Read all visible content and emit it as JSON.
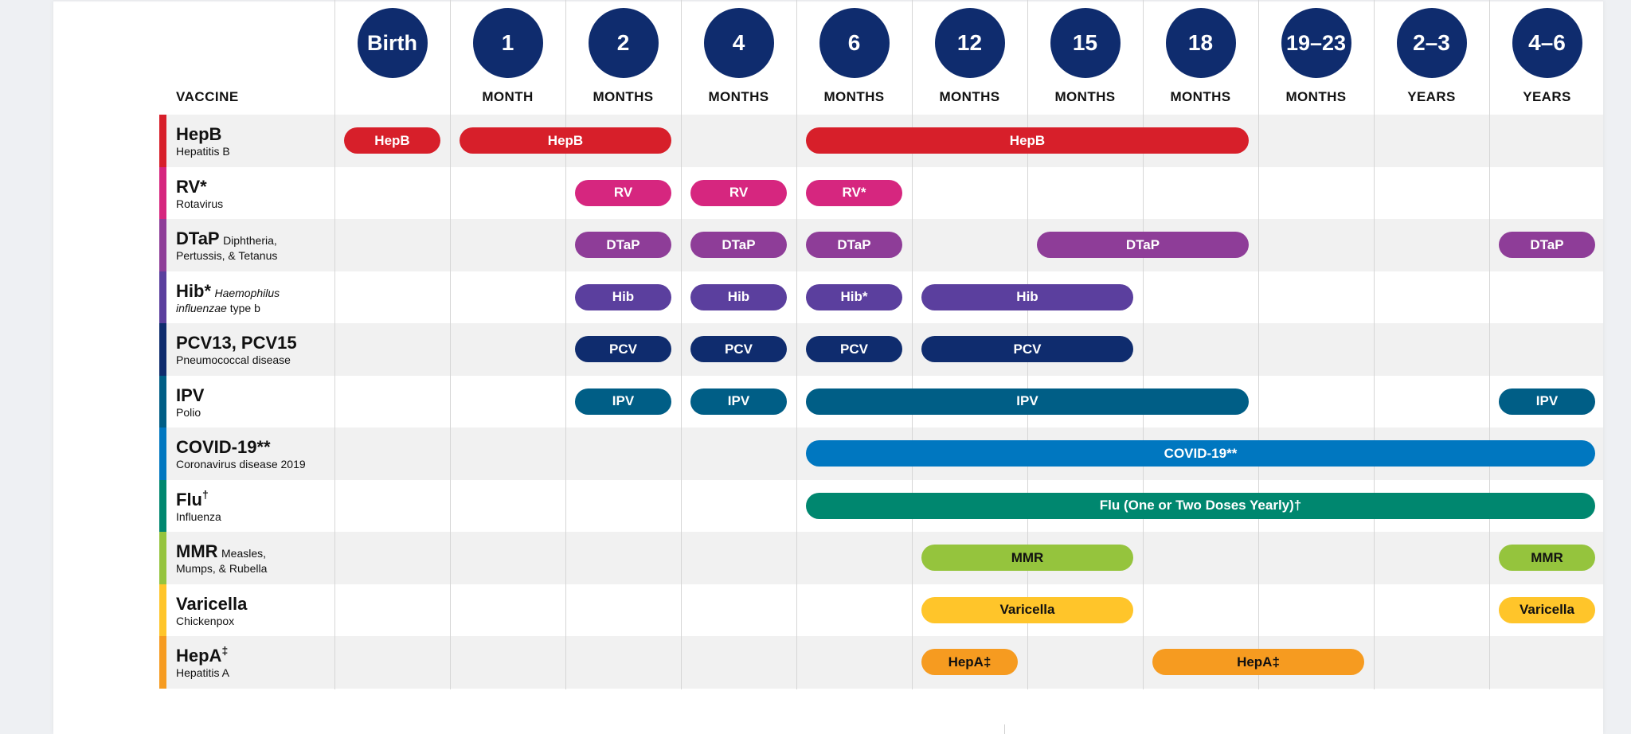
{
  "header": {
    "vaccine_label": "VACCINE",
    "ages": [
      {
        "circle": "Birth",
        "unit": ""
      },
      {
        "circle": "1",
        "unit": "MONTH"
      },
      {
        "circle": "2",
        "unit": "MONTHS"
      },
      {
        "circle": "4",
        "unit": "MONTHS"
      },
      {
        "circle": "6",
        "unit": "MONTHS"
      },
      {
        "circle": "12",
        "unit": "MONTHS"
      },
      {
        "circle": "15",
        "unit": "MONTHS"
      },
      {
        "circle": "18",
        "unit": "MONTHS"
      },
      {
        "circle": "19–23",
        "unit": "MONTHS"
      },
      {
        "circle": "2–3",
        "unit": "YEARS"
      },
      {
        "circle": "4–6",
        "unit": "YEARS"
      }
    ]
  },
  "colors": {
    "circle": "#0f2c6e",
    "hepb": "#d71f2a",
    "rv": "#d6267f",
    "dtap": "#8e3d98",
    "hib": "#5b3f9e",
    "pcv": "#0f2c6e",
    "ipv": "#005e86",
    "covid": "#0077c0",
    "flu": "#00876f",
    "mmr": "#95c43d",
    "varicella": "#ffc52a",
    "hepa": "#f69b20"
  },
  "rows": [
    {
      "name": "HepB",
      "name_sup": "",
      "sub": "Hepatitis B",
      "sub_inline": "",
      "sub_italic": "",
      "color": "#d71f2a",
      "pills": [
        {
          "label": "HepB",
          "from": 0,
          "to": 0
        },
        {
          "label": "HepB",
          "from": 1,
          "to": 2
        },
        {
          "label": "HepB",
          "from": 4,
          "to": 7
        }
      ]
    },
    {
      "name": "RV*",
      "name_sup": "",
      "sub": "Rotavirus",
      "sub_inline": "",
      "sub_italic": "",
      "color": "#d6267f",
      "pills": [
        {
          "label": "RV",
          "from": 2,
          "to": 2
        },
        {
          "label": "RV",
          "from": 3,
          "to": 3
        },
        {
          "label": "RV*",
          "from": 4,
          "to": 4
        }
      ]
    },
    {
      "name": "DTaP",
      "name_sup": "",
      "sub": "Pertussis, & Tetanus",
      "sub_inline": "Diphtheria,",
      "sub_italic": "",
      "color": "#8e3d98",
      "pills": [
        {
          "label": "DTaP",
          "from": 2,
          "to": 2
        },
        {
          "label": "DTaP",
          "from": 3,
          "to": 3
        },
        {
          "label": "DTaP",
          "from": 4,
          "to": 4
        },
        {
          "label": "DTaP",
          "from": 6,
          "to": 7
        },
        {
          "label": "DTaP",
          "from": 10,
          "to": 10
        }
      ]
    },
    {
      "name": "Hib*",
      "name_sup": "",
      "sub": "type b",
      "sub_inline": "Haemophilus",
      "sub_italic": "influenzae",
      "color": "#5b3f9e",
      "pills": [
        {
          "label": "Hib",
          "from": 2,
          "to": 2
        },
        {
          "label": "Hib",
          "from": 3,
          "to": 3
        },
        {
          "label": "Hib*",
          "from": 4,
          "to": 4
        },
        {
          "label": "Hib",
          "from": 5,
          "to": 6
        }
      ]
    },
    {
      "name": "PCV13, PCV15",
      "name_sup": "",
      "sub": "Pneumococcal disease",
      "sub_inline": "",
      "sub_italic": "",
      "color": "#0f2c6e",
      "pills": [
        {
          "label": "PCV",
          "from": 2,
          "to": 2
        },
        {
          "label": "PCV",
          "from": 3,
          "to": 3
        },
        {
          "label": "PCV",
          "from": 4,
          "to": 4
        },
        {
          "label": "PCV",
          "from": 5,
          "to": 6
        }
      ]
    },
    {
      "name": "IPV",
      "name_sup": "",
      "sub": "Polio",
      "sub_inline": "",
      "sub_italic": "",
      "color": "#005e86",
      "pills": [
        {
          "label": "IPV",
          "from": 2,
          "to": 2
        },
        {
          "label": "IPV",
          "from": 3,
          "to": 3
        },
        {
          "label": "IPV",
          "from": 4,
          "to": 7
        },
        {
          "label": "IPV",
          "from": 10,
          "to": 10
        }
      ]
    },
    {
      "name": "COVID-19**",
      "name_sup": "",
      "sub": "Coronavirus disease 2019",
      "sub_inline": "",
      "sub_italic": "",
      "color": "#0077c0",
      "pills": [
        {
          "label": "COVID-19**",
          "from": 4,
          "to": 10
        }
      ]
    },
    {
      "name": "Flu",
      "name_sup": "†",
      "sub": "Influenza",
      "sub_inline": "",
      "sub_italic": "",
      "color": "#00876f",
      "pills": [
        {
          "label": "Flu (One or Two Doses Yearly)†",
          "from": 4,
          "to": 10
        }
      ]
    },
    {
      "name": "MMR",
      "name_sup": "",
      "sub": "Mumps, & Rubella",
      "sub_inline": "Measles,",
      "sub_italic": "",
      "color": "#95c43d",
      "pills": [
        {
          "label": "MMR",
          "from": 5,
          "to": 6
        },
        {
          "label": "MMR",
          "from": 10,
          "to": 10
        }
      ]
    },
    {
      "name": "Varicella",
      "name_sup": "",
      "sub": "Chickenpox",
      "sub_inline": "",
      "sub_italic": "",
      "color": "#ffc52a",
      "pills": [
        {
          "label": "Varicella",
          "from": 5,
          "to": 6
        },
        {
          "label": "Varicella",
          "from": 10,
          "to": 10
        }
      ]
    },
    {
      "name": "HepA",
      "name_sup": "‡",
      "sub": "Hepatitis A",
      "sub_inline": "",
      "sub_italic": "",
      "color": "#f69b20",
      "pills": [
        {
          "label": "HepA‡",
          "from": 5,
          "to": 5
        },
        {
          "label": "HepA‡",
          "from": 7,
          "to": 8
        }
      ]
    }
  ]
}
